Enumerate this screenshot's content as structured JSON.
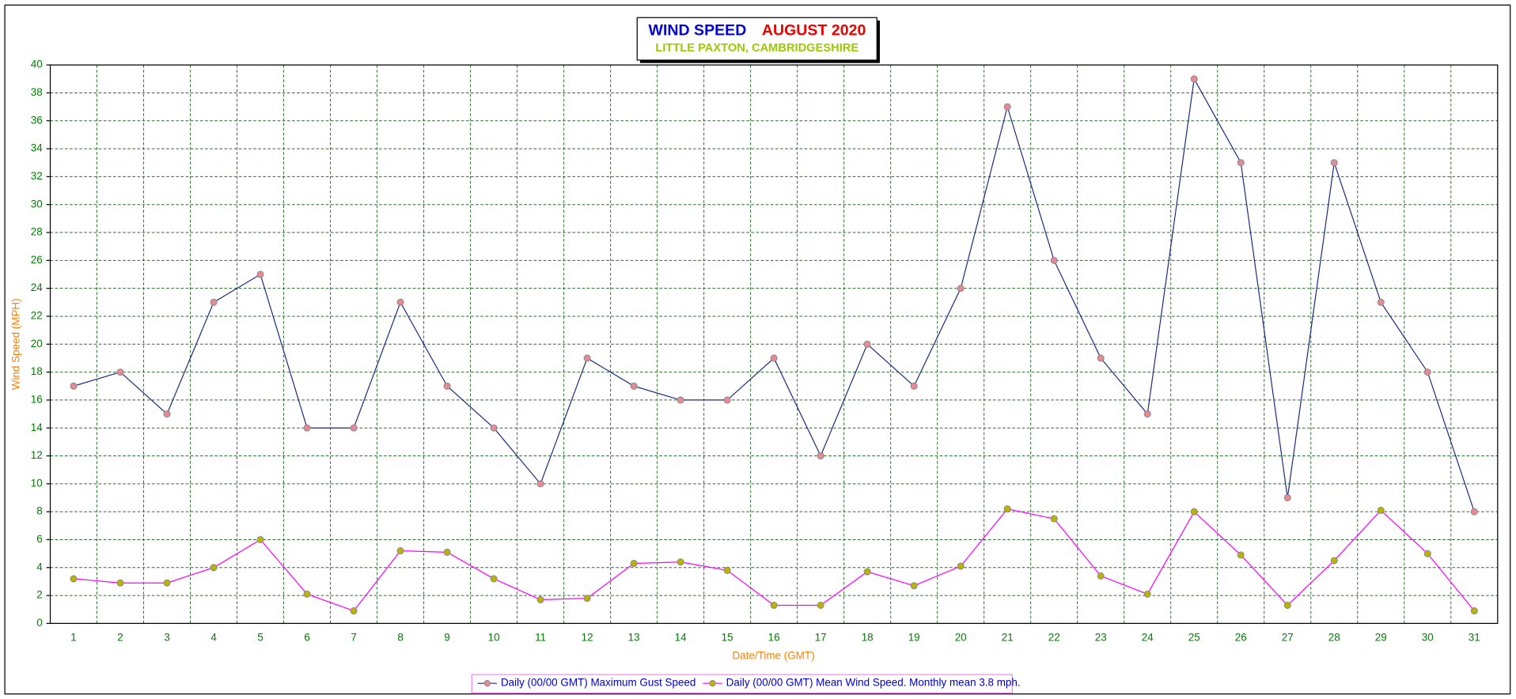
{
  "chart_data": {
    "type": "line",
    "title": "WIND SPEED",
    "title_period": "AUGUST 2020",
    "subtitle": "LITTLE PAXTON, CAMBRIDGESHIRE",
    "x_label": "Date/Time (GMT)",
    "y_label": "Wind Speed (MPH)",
    "categories": [
      "1",
      "2",
      "3",
      "4",
      "5",
      "6",
      "7",
      "8",
      "9",
      "10",
      "11",
      "12",
      "13",
      "14",
      "15",
      "16",
      "17",
      "18",
      "19",
      "20",
      "21",
      "22",
      "23",
      "24",
      "25",
      "26",
      "27",
      "28",
      "29",
      "30",
      "31"
    ],
    "series": [
      {
        "name": "Daily (00/00 GMT) Maximum Gust Speed",
        "color": "#1f2f80",
        "marker_color": "#e88a96",
        "values": [
          17,
          18,
          15,
          23,
          25,
          14,
          14,
          23,
          17,
          14,
          10,
          19,
          17,
          16,
          16,
          19,
          12,
          20,
          17,
          24,
          37,
          26,
          19,
          15,
          39,
          33,
          9,
          33,
          23,
          18,
          8
        ]
      },
      {
        "name": "Daily (00/00 GMT) Mean Wind Speed. Monthly mean 3.8 mph.",
        "color": "#ff00ff",
        "marker_color": "#b8b400",
        "values": [
          3.2,
          2.9,
          2.9,
          4,
          6,
          2.1,
          0.9,
          5.2,
          5.1,
          3.2,
          1.7,
          1.8,
          4.3,
          4.4,
          3.8,
          1.3,
          1.3,
          3.7,
          2.7,
          4.1,
          8.2,
          7.5,
          3.4,
          2.1,
          8,
          4.9,
          1.3,
          4.5,
          8.1,
          5,
          0.9
        ]
      }
    ],
    "ylim": [
      0,
      40
    ],
    "yticks": [
      0,
      2,
      4,
      6,
      8,
      10,
      12,
      14,
      16,
      18,
      20,
      22,
      24,
      26,
      28,
      30,
      32,
      34,
      36,
      38,
      40
    ],
    "grid": true
  }
}
